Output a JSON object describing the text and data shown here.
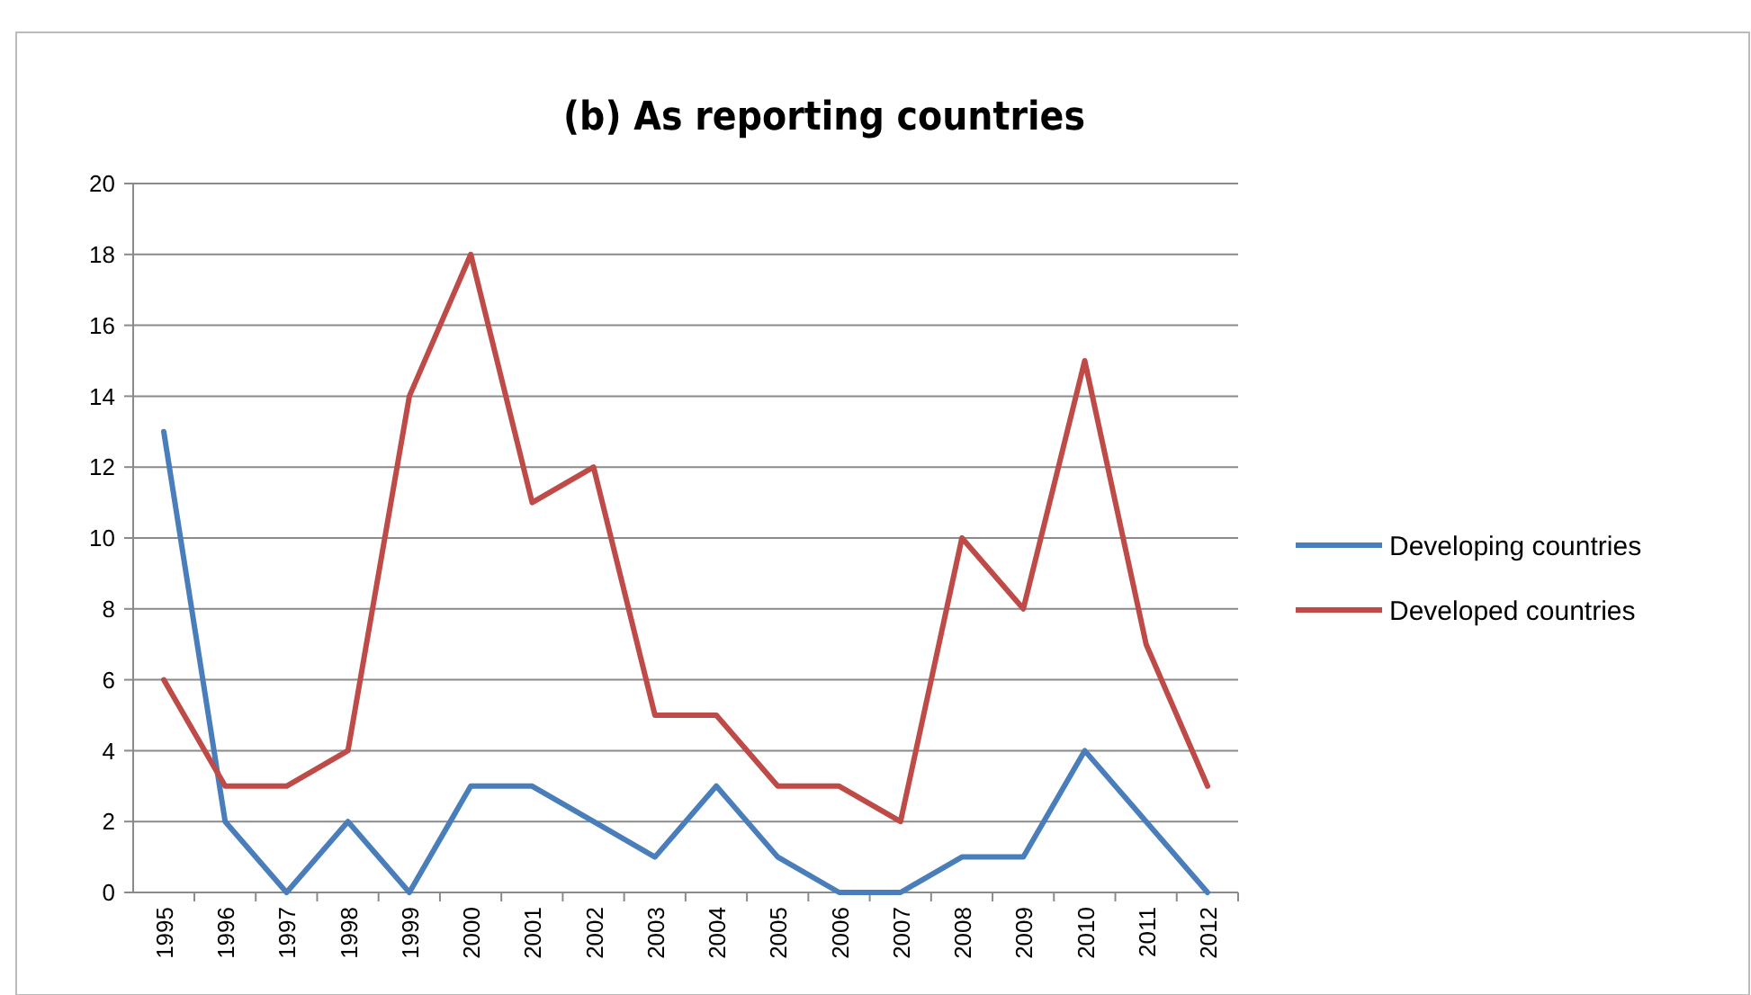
{
  "chart_data": {
    "type": "line",
    "title": "(b)  As reporting countries",
    "categories": [
      "1995",
      "1996",
      "1997",
      "1998",
      "1999",
      "2000",
      "2001",
      "2002",
      "2003",
      "2004",
      "2005",
      "2006",
      "2007",
      "2008",
      "2009",
      "2010",
      "2011",
      "2012"
    ],
    "series": [
      {
        "name": "Developing countries",
        "color": "#4a7ebb",
        "values": [
          13,
          2,
          0,
          2,
          0,
          3,
          3,
          2,
          1,
          3,
          1,
          0,
          0,
          1,
          1,
          4,
          2,
          0
        ]
      },
      {
        "name": "Developed countries",
        "color": "#be4b48",
        "values": [
          6,
          3,
          3,
          4,
          14,
          18,
          11,
          12,
          5,
          5,
          3,
          3,
          2,
          10,
          8,
          15,
          7,
          3
        ]
      }
    ],
    "ylim": [
      0,
      20
    ],
    "yticks": [
      0,
      2,
      4,
      6,
      8,
      10,
      12,
      14,
      16,
      18,
      20
    ],
    "grid": "y",
    "legend": "right",
    "marker": "none",
    "line_style": "solid"
  }
}
